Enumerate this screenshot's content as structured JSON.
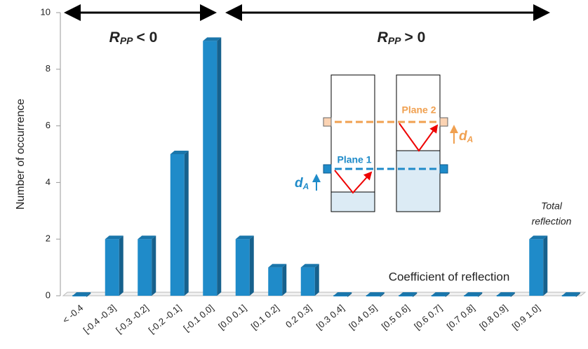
{
  "chart_data": {
    "type": "bar",
    "y_label": "Number of occurrence",
    "x_label": "Coefficient of reflection",
    "categories": [
      "< -0.4",
      "[-0.4 -0.3]",
      "[-0.3 -0.2]",
      "[-0.2 -0.1]",
      "[-0.1 0.0]",
      "[0.0 0.1]",
      "[0.1 0.2]",
      "0.2 0.3]",
      "[0.3 0.4]",
      "[0.4 0.5]",
      "[0.5 0.6]",
      "[0.6 0.7]",
      "[0.7 0.8]",
      "[0.8 0.9]",
      "[0.9 1.0]",
      null
    ],
    "values": [
      0,
      2,
      2,
      5,
      9,
      2,
      1,
      1,
      0,
      0,
      0,
      0,
      0,
      0,
      2,
      0
    ],
    "color": "#1f8bc9",
    "ylim": [
      0,
      10
    ],
    "yticks": [
      0,
      2,
      4,
      6,
      8,
      10
    ],
    "annotations": {
      "left_region": {
        "symbol": "R",
        "subscript": "PP",
        "relation": "< 0"
      },
      "right_region": {
        "symbol": "R",
        "subscript": "PP",
        "relation": "> 0"
      },
      "total_reflection": [
        "Total",
        "reflection"
      ],
      "plane_1": "Plane 1",
      "plane_2": "Plane 2",
      "d_blue": {
        "symbol": "d",
        "subscript": "A"
      },
      "d_orange": {
        "symbol": "d",
        "subscript": "A"
      }
    }
  }
}
